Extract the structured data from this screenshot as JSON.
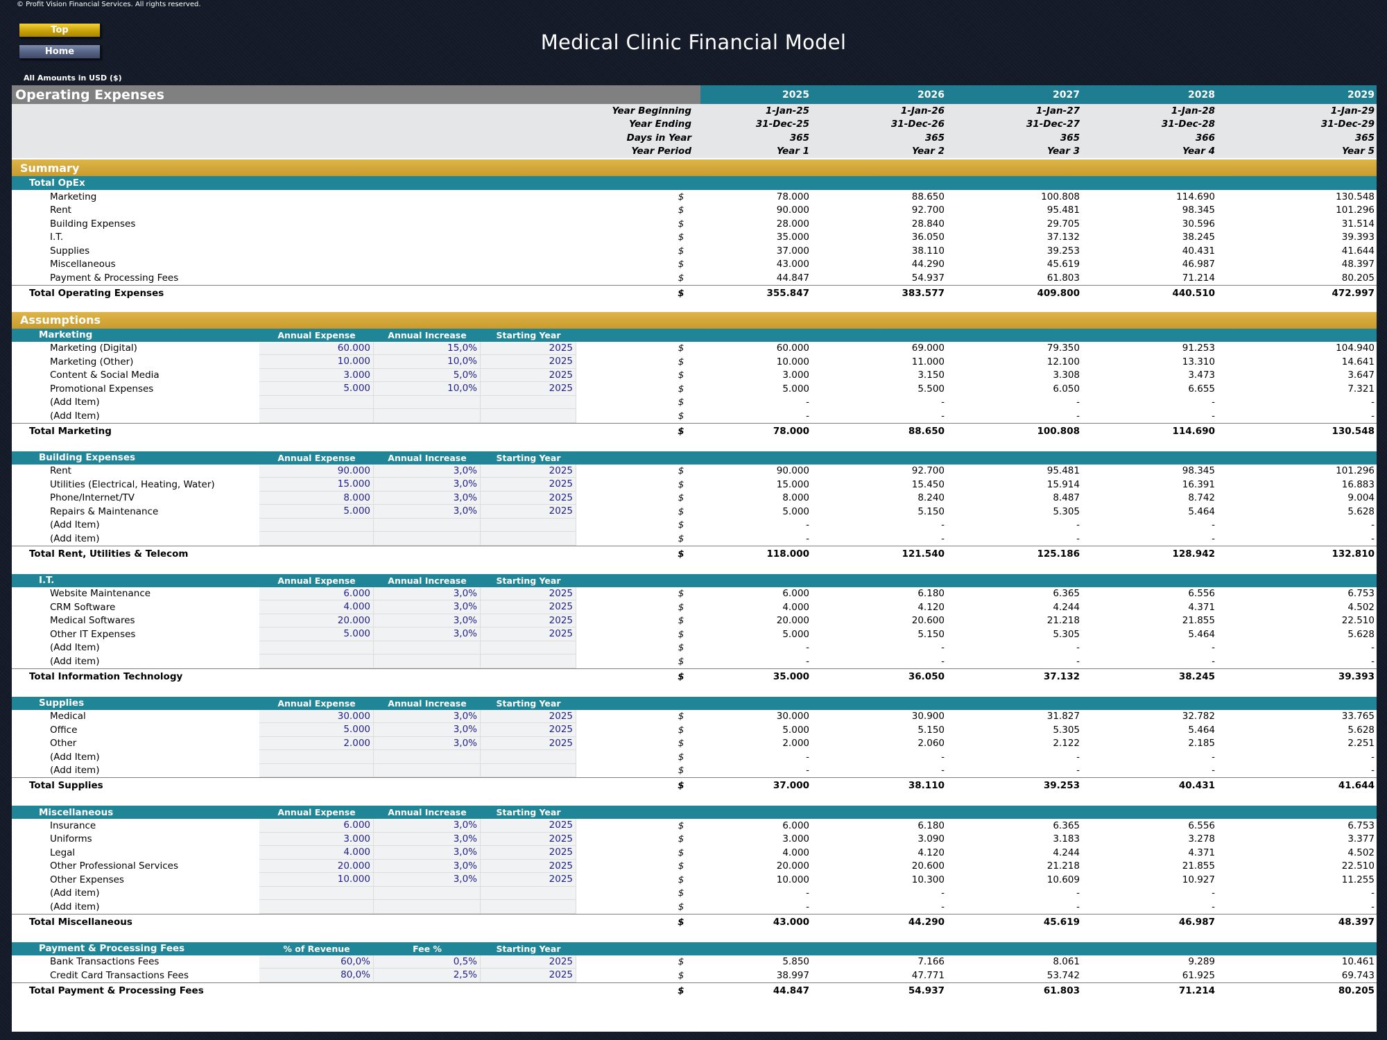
{
  "header": {
    "copyright": "© Profit Vision Financial Services. All rights reserved.",
    "title": "Medical Clinic Financial Model",
    "amounts_label": "All Amounts in  USD ($)",
    "nav": {
      "top": "Top",
      "home": "Home"
    }
  },
  "sheet": {
    "title": "Operating Expenses",
    "years": [
      "2025",
      "2026",
      "2027",
      "2028",
      "2029"
    ],
    "timeline": [
      {
        "label": "Year Beginning",
        "values": [
          "1-Jan-25",
          "1-Jan-26",
          "1-Jan-27",
          "1-Jan-28",
          "1-Jan-29"
        ]
      },
      {
        "label": "Year Ending",
        "values": [
          "31-Dec-25",
          "31-Dec-26",
          "31-Dec-27",
          "31-Dec-28",
          "31-Dec-29"
        ]
      },
      {
        "label": "Days in Year",
        "values": [
          "365",
          "365",
          "365",
          "366",
          "365"
        ]
      },
      {
        "label": "Year Period",
        "values": [
          "Year 1",
          "Year 2",
          "Year 3",
          "Year 4",
          "Year 5"
        ]
      }
    ],
    "currency": "$",
    "summary": {
      "title": "Summary",
      "group": "Total OpEx",
      "items": [
        {
          "label": "Marketing",
          "values": [
            "78.000",
            "88.650",
            "100.808",
            "114.690",
            "130.548"
          ]
        },
        {
          "label": "Rent",
          "values": [
            "90.000",
            "92.700",
            "95.481",
            "98.345",
            "101.296"
          ]
        },
        {
          "label": "Building Expenses",
          "values": [
            "28.000",
            "28.840",
            "29.705",
            "30.596",
            "31.514"
          ]
        },
        {
          "label": "I.T.",
          "values": [
            "35.000",
            "36.050",
            "37.132",
            "38.245",
            "39.393"
          ]
        },
        {
          "label": "Supplies",
          "values": [
            "37.000",
            "38.110",
            "39.253",
            "40.431",
            "41.644"
          ]
        },
        {
          "label": "Miscellaneous",
          "values": [
            "43.000",
            "44.290",
            "45.619",
            "46.987",
            "48.397"
          ]
        },
        {
          "label": "Payment & Processing Fees",
          "values": [
            "44.847",
            "54.937",
            "61.803",
            "71.214",
            "80.205"
          ]
        }
      ],
      "total": {
        "label": "Total Operating Expenses",
        "values": [
          "355.847",
          "383.577",
          "409.800",
          "440.510",
          "472.997"
        ]
      }
    },
    "assumptions": {
      "title": "Assumptions",
      "sections": [
        {
          "name": "Marketing",
          "cols": [
            "Annual Expense",
            "Annual Increase",
            "Starting Year"
          ],
          "items": [
            {
              "label": "Marketing (Digital)",
              "inputs": [
                "60.000",
                "15,0%",
                "2025"
              ],
              "values": [
                "60.000",
                "69.000",
                "79.350",
                "91.253",
                "104.940"
              ]
            },
            {
              "label": "Marketing (Other)",
              "inputs": [
                "10.000",
                "10,0%",
                "2025"
              ],
              "values": [
                "10.000",
                "11.000",
                "12.100",
                "13.310",
                "14.641"
              ]
            },
            {
              "label": "Content & Social Media",
              "inputs": [
                "3.000",
                "5,0%",
                "2025"
              ],
              "values": [
                "3.000",
                "3.150",
                "3.308",
                "3.473",
                "3.647"
              ]
            },
            {
              "label": "Promotional Expenses",
              "inputs": [
                "5.000",
                "10,0%",
                "2025"
              ],
              "values": [
                "5.000",
                "5.500",
                "6.050",
                "6.655",
                "7.321"
              ]
            },
            {
              "label": "(Add Item)",
              "inputs": [
                "",
                "",
                ""
              ],
              "values": [
                "-",
                "-",
                "-",
                "-",
                "-"
              ]
            },
            {
              "label": "(Add Item)",
              "inputs": [
                "",
                "",
                ""
              ],
              "values": [
                "-",
                "-",
                "-",
                "-",
                "-"
              ]
            }
          ],
          "total": {
            "label": "Total Marketing",
            "values": [
              "78.000",
              "88.650",
              "100.808",
              "114.690",
              "130.548"
            ]
          }
        },
        {
          "name": "Building Expenses",
          "cols": [
            "Annual Expense",
            "Annual Increase",
            "Starting Year"
          ],
          "items": [
            {
              "label": "Rent",
              "inputs": [
                "90.000",
                "3,0%",
                "2025"
              ],
              "values": [
                "90.000",
                "92.700",
                "95.481",
                "98.345",
                "101.296"
              ]
            },
            {
              "label": "Utilities (Electrical, Heating, Water)",
              "inputs": [
                "15.000",
                "3,0%",
                "2025"
              ],
              "values": [
                "15.000",
                "15.450",
                "15.914",
                "16.391",
                "16.883"
              ]
            },
            {
              "label": "Phone/Internet/TV",
              "inputs": [
                "8.000",
                "3,0%",
                "2025"
              ],
              "values": [
                "8.000",
                "8.240",
                "8.487",
                "8.742",
                "9.004"
              ]
            },
            {
              "label": "Repairs & Maintenance",
              "inputs": [
                "5.000",
                "3,0%",
                "2025"
              ],
              "values": [
                "5.000",
                "5.150",
                "5.305",
                "5.464",
                "5.628"
              ]
            },
            {
              "label": "(Add Item)",
              "inputs": [
                "",
                "",
                ""
              ],
              "values": [
                "-",
                "-",
                "-",
                "-",
                "-"
              ]
            },
            {
              "label": "(Add item)",
              "inputs": [
                "",
                "",
                ""
              ],
              "values": [
                "-",
                "-",
                "-",
                "-",
                "-"
              ]
            }
          ],
          "total": {
            "label": "Total Rent, Utilities & Telecom",
            "values": [
              "118.000",
              "121.540",
              "125.186",
              "128.942",
              "132.810"
            ]
          }
        },
        {
          "name": "I.T.",
          "cols": [
            "Annual Expense",
            "Annual Increase",
            "Starting Year"
          ],
          "items": [
            {
              "label": "Website Maintenance",
              "inputs": [
                "6.000",
                "3,0%",
                "2025"
              ],
              "values": [
                "6.000",
                "6.180",
                "6.365",
                "6.556",
                "6.753"
              ]
            },
            {
              "label": "CRM Software",
              "inputs": [
                "4.000",
                "3,0%",
                "2025"
              ],
              "values": [
                "4.000",
                "4.120",
                "4.244",
                "4.371",
                "4.502"
              ]
            },
            {
              "label": "Medical Softwares",
              "inputs": [
                "20.000",
                "3,0%",
                "2025"
              ],
              "values": [
                "20.000",
                "20.600",
                "21.218",
                "21.855",
                "22.510"
              ]
            },
            {
              "label": "Other IT Expenses",
              "inputs": [
                "5.000",
                "3,0%",
                "2025"
              ],
              "values": [
                "5.000",
                "5.150",
                "5.305",
                "5.464",
                "5.628"
              ]
            },
            {
              "label": "(Add Item)",
              "inputs": [
                "",
                "",
                ""
              ],
              "values": [
                "-",
                "-",
                "-",
                "-",
                "-"
              ]
            },
            {
              "label": "(Add item)",
              "inputs": [
                "",
                "",
                ""
              ],
              "values": [
                "-",
                "-",
                "-",
                "-",
                "-"
              ]
            }
          ],
          "total": {
            "label": "Total Information Technology",
            "values": [
              "35.000",
              "36.050",
              "37.132",
              "38.245",
              "39.393"
            ]
          }
        },
        {
          "name": "Supplies",
          "cols": [
            "Annual Expense",
            "Annual Increase",
            "Starting Year"
          ],
          "items": [
            {
              "label": "Medical",
              "inputs": [
                "30.000",
                "3,0%",
                "2025"
              ],
              "values": [
                "30.000",
                "30.900",
                "31.827",
                "32.782",
                "33.765"
              ]
            },
            {
              "label": "Office",
              "inputs": [
                "5.000",
                "3,0%",
                "2025"
              ],
              "values": [
                "5.000",
                "5.150",
                "5.305",
                "5.464",
                "5.628"
              ]
            },
            {
              "label": "Other",
              "inputs": [
                "2.000",
                "3,0%",
                "2025"
              ],
              "values": [
                "2.000",
                "2.060",
                "2.122",
                "2.185",
                "2.251"
              ]
            },
            {
              "label": "(Add Item)",
              "inputs": [
                "",
                "",
                ""
              ],
              "values": [
                "-",
                "-",
                "-",
                "-",
                "-"
              ]
            },
            {
              "label": "(Add item)",
              "inputs": [
                "",
                "",
                ""
              ],
              "values": [
                "-",
                "-",
                "-",
                "-",
                "-"
              ]
            }
          ],
          "total": {
            "label": "Total Supplies",
            "values": [
              "37.000",
              "38.110",
              "39.253",
              "40.431",
              "41.644"
            ]
          }
        },
        {
          "name": "Miscellaneous",
          "cols": [
            "Annual Expense",
            "Annual Increase",
            "Starting Year"
          ],
          "items": [
            {
              "label": "Insurance",
              "inputs": [
                "6.000",
                "3,0%",
                "2025"
              ],
              "values": [
                "6.000",
                "6.180",
                "6.365",
                "6.556",
                "6.753"
              ]
            },
            {
              "label": "Uniforms",
              "inputs": [
                "3.000",
                "3,0%",
                "2025"
              ],
              "values": [
                "3.000",
                "3.090",
                "3.183",
                "3.278",
                "3.377"
              ]
            },
            {
              "label": "Legal",
              "inputs": [
                "4.000",
                "3,0%",
                "2025"
              ],
              "values": [
                "4.000",
                "4.120",
                "4.244",
                "4.371",
                "4.502"
              ]
            },
            {
              "label": "Other Professional Services",
              "inputs": [
                "20.000",
                "3,0%",
                "2025"
              ],
              "values": [
                "20.000",
                "20.600",
                "21.218",
                "21.855",
                "22.510"
              ]
            },
            {
              "label": "Other Expenses",
              "inputs": [
                "10.000",
                "3,0%",
                "2025"
              ],
              "values": [
                "10.000",
                "10.300",
                "10.609",
                "10.927",
                "11.255"
              ]
            },
            {
              "label": "(Add item)",
              "inputs": [
                "",
                "",
                ""
              ],
              "values": [
                "-",
                "-",
                "-",
                "-",
                "-"
              ]
            },
            {
              "label": "(Add item)",
              "inputs": [
                "",
                "",
                ""
              ],
              "values": [
                "-",
                "-",
                "-",
                "-",
                "-"
              ]
            }
          ],
          "total": {
            "label": "Total Miscellaneous",
            "values": [
              "43.000",
              "44.290",
              "45.619",
              "46.987",
              "48.397"
            ]
          }
        },
        {
          "name": "Payment & Processing Fees",
          "cols": [
            "% of Revenue",
            "Fee %",
            "Starting Year"
          ],
          "items": [
            {
              "label": "Bank Transactions Fees",
              "inputs": [
                "60,0%",
                "0,5%",
                "2025"
              ],
              "values": [
                "5.850",
                "7.166",
                "8.061",
                "9.289",
                "10.461"
              ]
            },
            {
              "label": "Credit Card Transactions Fees",
              "inputs": [
                "80,0%",
                "2,5%",
                "2025"
              ],
              "values": [
                "38.997",
                "47.771",
                "53.742",
                "61.925",
                "69.743"
              ]
            }
          ],
          "total": {
            "label": "Total Payment & Processing Fees",
            "values": [
              "44.847",
              "54.937",
              "61.803",
              "71.214",
              "80.205"
            ]
          }
        }
      ]
    }
  }
}
